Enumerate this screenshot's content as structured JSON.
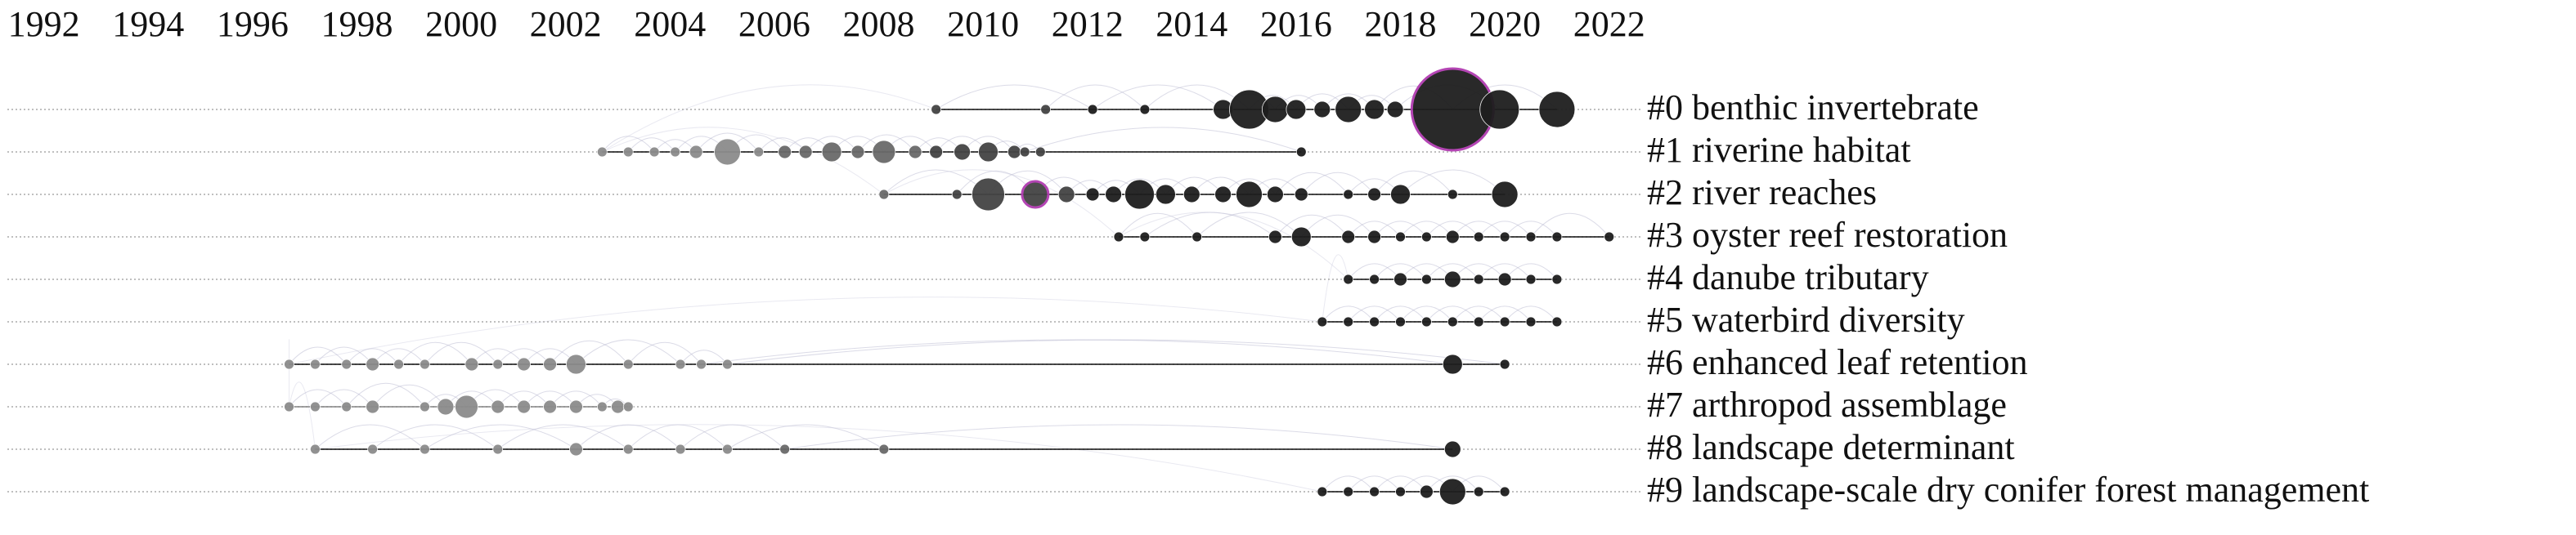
{
  "chart_data": {
    "type": "timeline",
    "xlim": [
      1991.3,
      2022.6
    ],
    "xticks": [
      1992,
      1994,
      1996,
      1998,
      2000,
      2002,
      2004,
      2006,
      2008,
      2010,
      2012,
      2014,
      2016,
      2018,
      2020,
      2022
    ],
    "ring_color": "#b03cb0",
    "clusters": [
      {
        "name": "#0 benthic invertebrate",
        "x": [
          2009.1,
          2011.2,
          2012.1,
          2013.1,
          2014.6,
          2015.1,
          2015.6,
          2016.0,
          2016.5,
          2017.0,
          2017.5,
          2017.9,
          2019.0,
          2019.9,
          2021.0
        ],
        "sizes": [
          3,
          3,
          3,
          3,
          6,
          12,
          8,
          6,
          5,
          8,
          6,
          5,
          25,
          12,
          11
        ],
        "ringed": [
          12
        ]
      },
      {
        "name": "#1 riverine habitat",
        "x": [
          2002.7,
          2003.2,
          2003.7,
          2004.1,
          2004.5,
          2005.1,
          2005.7,
          2006.2,
          2006.6,
          2007.1,
          2007.6,
          2008.1,
          2008.7,
          2009.1,
          2009.6,
          2010.1,
          2010.6,
          2010.8,
          2011.1,
          2016.1
        ],
        "sizes": [
          3,
          3,
          3,
          3,
          4,
          8,
          3,
          4,
          4,
          6,
          4,
          7,
          4,
          4,
          5,
          6,
          4,
          3,
          3,
          3
        ],
        "ringed": []
      },
      {
        "name": "#2 river reaches",
        "x": [
          2008.1,
          2009.5,
          2010.1,
          2011.0,
          2011.6,
          2012.1,
          2012.5,
          2013.0,
          2013.5,
          2014.0,
          2014.6,
          2015.1,
          2015.6,
          2016.1,
          2017.0,
          2017.5,
          2018.0,
          2019.0,
          2020.0
        ],
        "sizes": [
          3,
          3,
          10,
          8,
          5,
          4,
          5,
          9,
          6,
          5,
          5,
          8,
          5,
          4,
          3,
          4,
          6,
          3,
          8
        ],
        "ringed": [
          3
        ]
      },
      {
        "name": "#3 oyster reef restoration",
        "x": [
          2012.6,
          2013.1,
          2014.1,
          2015.6,
          2016.1,
          2017.0,
          2017.5,
          2018.0,
          2018.5,
          2019.0,
          2019.5,
          2020.0,
          2020.5,
          2021.0,
          2022.0
        ],
        "sizes": [
          3,
          3,
          3,
          4,
          6,
          4,
          4,
          3,
          3,
          4,
          3,
          3,
          3,
          3,
          3
        ],
        "ringed": []
      },
      {
        "name": "#4 danube tributary",
        "x": [
          2017.0,
          2017.5,
          2018.0,
          2018.5,
          2019.0,
          2019.5,
          2020.0,
          2020.5,
          2021.0
        ],
        "sizes": [
          3,
          3,
          4,
          3,
          5,
          3,
          4,
          3,
          3
        ],
        "ringed": []
      },
      {
        "name": "#5 waterbird diversity",
        "x": [
          2016.5,
          2017.0,
          2017.5,
          2018.0,
          2018.5,
          2019.0,
          2019.5,
          2020.0,
          2020.5,
          2021.0
        ],
        "sizes": [
          3,
          3,
          3,
          3,
          3,
          3,
          3,
          3,
          3,
          3
        ],
        "ringed": []
      },
      {
        "name": "#6 enhanced leaf retention",
        "x": [
          1996.7,
          1997.2,
          1997.8,
          1998.3,
          1998.8,
          1999.3,
          2000.2,
          2000.7,
          2001.2,
          2001.7,
          2002.2,
          2003.2,
          2004.2,
          2004.6,
          2005.1,
          2019.0,
          2020.0
        ],
        "sizes": [
          3,
          3,
          3,
          4,
          3,
          3,
          4,
          3,
          4,
          4,
          6,
          3,
          3,
          3,
          3,
          6,
          3
        ],
        "ringed": []
      },
      {
        "name": "#7 arthropod assemblage",
        "x": [
          1996.7,
          1997.2,
          1997.8,
          1998.3,
          1999.3,
          1999.7,
          2000.1,
          2000.7,
          2001.2,
          2001.7,
          2002.2,
          2002.7,
          2003.0,
          2003.2
        ],
        "sizes": [
          3,
          3,
          3,
          4,
          3,
          5,
          7,
          4,
          4,
          4,
          4,
          3,
          4,
          3
        ],
        "ringed": []
      },
      {
        "name": "#8 landscape determinant",
        "x": [
          1997.2,
          1998.3,
          1999.3,
          2000.7,
          2002.2,
          2003.2,
          2004.2,
          2005.1,
          2006.2,
          2008.1,
          2019.0
        ],
        "sizes": [
          3,
          3,
          3,
          3,
          4,
          3,
          3,
          3,
          3,
          3,
          5
        ],
        "ringed": []
      },
      {
        "name": "#9 landscape-scale dry conifer forest management",
        "x": [
          2016.5,
          2017.0,
          2017.5,
          2018.0,
          2018.5,
          2019.0,
          2019.5,
          2020.0
        ],
        "sizes": [
          3,
          3,
          3,
          3,
          4,
          8,
          3,
          3
        ],
        "ringed": []
      }
    ]
  }
}
